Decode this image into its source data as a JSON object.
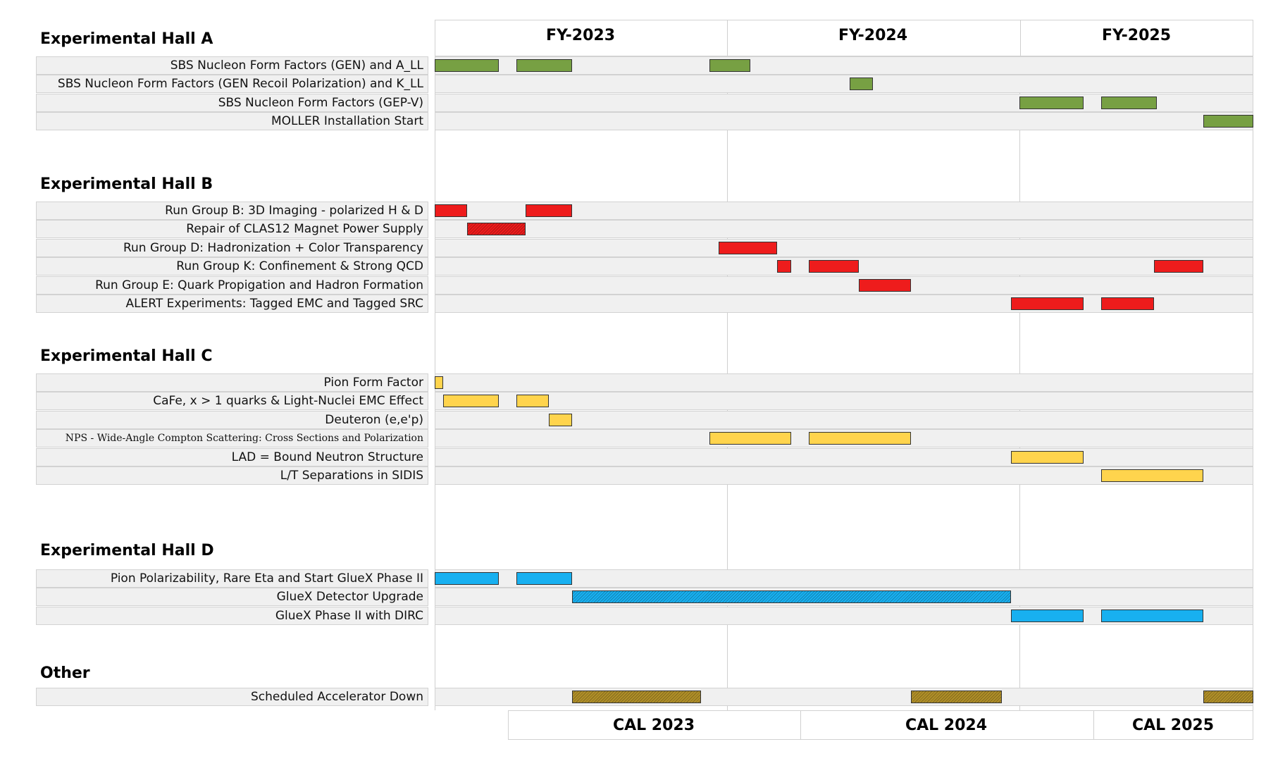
{
  "chart_data": {
    "type": "gantt",
    "time_unit": "fiscal-year fraction",
    "fiscal_years": [
      "FY-2023",
      "FY-2024",
      "FY-2025"
    ],
    "calendar_years": [
      "CAL 2023",
      "CAL 2024",
      "CAL 2025"
    ],
    "x_range": [
      2023.0,
      2025.8
    ],
    "colors": {
      "Experimental Hall A": "#77a043",
      "Experimental Hall B": "#ee1c1c",
      "Experimental Hall C": "#ffd44d",
      "Experimental Hall D": "#18b0f0",
      "Other": "#b08f28"
    },
    "sections": [
      {
        "title": "Experimental Hall A",
        "tasks": [
          {
            "label": "SBS Nucleon Form Factors (GEN) and A_LL",
            "bars": [
              [
                2023.0,
                2023.22
              ],
              [
                2023.28,
                2023.47
              ],
              [
                2023.94,
                2024.08
              ]
            ]
          },
          {
            "label": "SBS Nucleon Form Factors (GEN Recoil Polarization) and K_LL",
            "bars": [
              [
                2024.42,
                2024.5
              ]
            ]
          },
          {
            "label": "SBS Nucleon Form Factors (GEP-V)",
            "bars": [
              [
                2025.0,
                2025.22
              ],
              [
                2025.28,
                2025.47
              ]
            ]
          },
          {
            "label": "MOLLER Installation Start",
            "bars": [
              [
                2025.63,
                2025.8
              ]
            ]
          }
        ]
      },
      {
        "title": "Experimental Hall B",
        "tasks": [
          {
            "label": "Run Group B: 3D Imaging - polarized H & D",
            "bars": [
              [
                2023.0,
                2023.11
              ],
              [
                2023.31,
                2023.47
              ]
            ]
          },
          {
            "label": "Repair of CLAS12 Magnet Power Supply",
            "bars": [
              [
                2023.11,
                2023.31
              ]
            ],
            "hatched": true
          },
          {
            "label": "Run Group D: Hadronization + Color Transparency",
            "bars": [
              [
                2023.97,
                2024.17
              ]
            ]
          },
          {
            "label": "Run Group K: Confinement & Strong QCD",
            "bars": [
              [
                2024.17,
                2024.22
              ],
              [
                2024.28,
                2024.45
              ],
              [
                2025.46,
                2025.63
              ]
            ]
          },
          {
            "label": "Run Group E: Quark Propigation and Hadron Formation",
            "bars": [
              [
                2024.45,
                2024.63
              ]
            ]
          },
          {
            "label": "ALERT Experiments: Tagged EMC and Tagged SRC",
            "bars": [
              [
                2024.97,
                2025.22
              ],
              [
                2025.28,
                2025.46
              ]
            ]
          }
        ]
      },
      {
        "title": "Experimental Hall C",
        "tasks": [
          {
            "label": "Pion Form Factor",
            "bars": [
              [
                2023.0,
                2023.03
              ]
            ]
          },
          {
            "label": "CaFe, x > 1 quarks & Light-Nuclei EMC Effect",
            "bars": [
              [
                2023.03,
                2023.22
              ],
              [
                2023.28,
                2023.39
              ]
            ]
          },
          {
            "label": "Deuteron (e,e'p)",
            "bars": [
              [
                2023.39,
                2023.47
              ]
            ]
          },
          {
            "label": "NPS - Wide-Angle Compton Scattering: Cross Sections and Polarization",
            "bars": [
              [
                2023.94,
                2024.22
              ],
              [
                2024.28,
                2024.63
              ]
            ],
            "small_font": true
          },
          {
            "label": "LAD = Bound Neutron Structure",
            "bars": [
              [
                2024.97,
                2025.22
              ]
            ]
          },
          {
            "label": "L/T Separations in SIDIS",
            "bars": [
              [
                2025.28,
                2025.63
              ]
            ]
          }
        ]
      },
      {
        "title": "Experimental Hall D",
        "tasks": [
          {
            "label": "Pion Polarizability, Rare Eta and Start GlueX Phase II",
            "bars": [
              [
                2023.0,
                2023.22
              ],
              [
                2023.28,
                2023.47
              ]
            ]
          },
          {
            "label": "GlueX Detector Upgrade",
            "bars": [
              [
                2023.47,
                2024.97
              ]
            ],
            "hatched": true
          },
          {
            "label": "GlueX Phase II with DIRC",
            "bars": [
              [
                2024.97,
                2025.22
              ],
              [
                2025.28,
                2025.63
              ]
            ]
          }
        ]
      },
      {
        "title": "Other",
        "tasks": [
          {
            "label": "Scheduled Accelerator Down",
            "bars": [
              [
                2023.47,
                2023.91
              ],
              [
                2024.63,
                2024.94
              ],
              [
                2025.63,
                2025.8
              ]
            ],
            "hatched": true
          }
        ]
      }
    ]
  }
}
